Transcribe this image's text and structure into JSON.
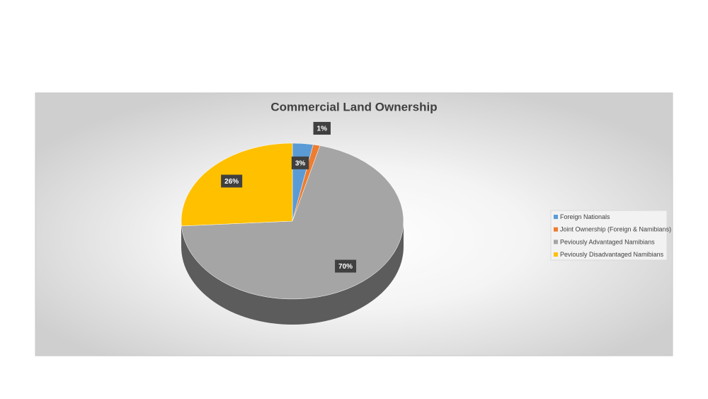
{
  "chart_data": {
    "type": "pie",
    "title": "Commercial Land Ownership",
    "categories": [
      "Foreign Nationals",
      "Joint Ownership (Foreign & Namibians)",
      "Peviously Advantaged Namibians",
      "Peviously Disadvantaged Namibians"
    ],
    "values": [
      3,
      1,
      70,
      26
    ],
    "value_labels": [
      "3%",
      "1%",
      "70%",
      "26%"
    ],
    "colors": [
      "#5b9bd5",
      "#ed7d31",
      "#a5a5a5",
      "#ffc000"
    ],
    "legend": "right"
  }
}
